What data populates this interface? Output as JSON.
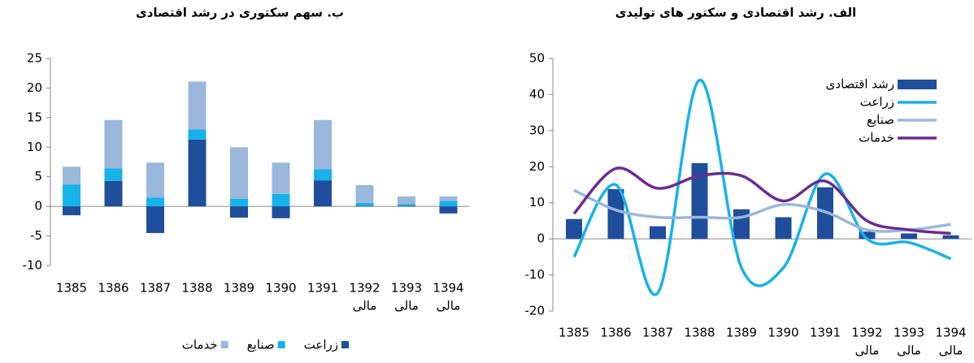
{
  "chart_data": [
    {
      "type": "stacked_bar",
      "title": "ب. سهم سکتوری در رشد اقتصادی",
      "categories": [
        [
          "1385"
        ],
        [
          "1386"
        ],
        [
          "1387"
        ],
        [
          "1388"
        ],
        [
          "1389"
        ],
        [
          "1390"
        ],
        [
          "1391"
        ],
        [
          "1392",
          "مالی"
        ],
        [
          "1393",
          "مالی"
        ],
        [
          "1394",
          "مالی"
        ]
      ],
      "series": [
        {
          "name": "زراعت",
          "color": "#1f4e9c",
          "values": [
            -1.5,
            4.3,
            -4.5,
            11.3,
            -1.9,
            -2.0,
            4.4,
            0.1,
            0.1,
            -1.2
          ]
        },
        {
          "name": "صنایع",
          "color": "#16b2ea",
          "values": [
            3.7,
            2.1,
            1.5,
            1.7,
            1.3,
            2.1,
            1.9,
            0.5,
            0.3,
            0.9
          ]
        },
        {
          "name": "خدمات",
          "color": "#9ab7dc",
          "values": [
            3.0,
            8.2,
            5.9,
            8.1,
            8.7,
            5.3,
            8.3,
            3.0,
            1.3,
            0.8
          ]
        }
      ],
      "ylim": [
        -10,
        25
      ],
      "yticks": [
        -10,
        -5,
        0,
        5,
        10,
        15,
        20,
        25
      ],
      "legend": "bottom"
    },
    {
      "type": "bar_line",
      "title": "الف. رشد اقتصادی و سکتور های تولیدی",
      "categories": [
        [
          "1385"
        ],
        [
          "1386"
        ],
        [
          "1387"
        ],
        [
          "1388"
        ],
        [
          "1389"
        ],
        [
          "1390"
        ],
        [
          "1391"
        ],
        [
          "1392",
          "مالی"
        ],
        [
          "1393",
          "مالی"
        ],
        [
          "1394",
          "مالی"
        ]
      ],
      "series": [
        {
          "name": "رشد اقتصادی",
          "kind": "bar",
          "color": "#1f4e9c",
          "values": [
            5.5,
            13.8,
            3.5,
            21.0,
            8.2,
            6.0,
            14.3,
            2.0,
            1.5,
            1.0
          ]
        },
        {
          "name": "زراعت",
          "kind": "line",
          "color": "#16b2ea",
          "values": [
            -5,
            15,
            -15,
            44,
            -8,
            -8,
            18,
            0,
            -1,
            -5.5
          ]
        },
        {
          "name": "صنایع",
          "kind": "line",
          "color": "#9ab7dc",
          "values": [
            13.5,
            8,
            6,
            6,
            6,
            9.5,
            7.5,
            2.5,
            2.5,
            4
          ]
        },
        {
          "name": "خدمات",
          "kind": "line",
          "color": "#6a2c91",
          "values": [
            7,
            19.5,
            14,
            17.5,
            17.5,
            10.5,
            16,
            5,
            2.5,
            1.5
          ]
        }
      ],
      "ylim": [
        -20,
        50
      ],
      "yticks": [
        -20,
        -10,
        0,
        10,
        20,
        30,
        40,
        50
      ],
      "legend": "top-right"
    }
  ]
}
